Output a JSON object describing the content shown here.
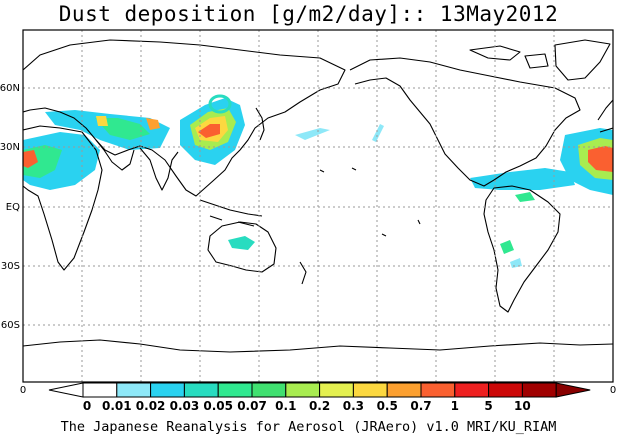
{
  "title": "Dust deposition [g/m2/day]:: 13May2012",
  "map": {
    "lat_labels": [
      "60N",
      "30N",
      "EQ",
      "30S",
      "60S"
    ],
    "lon_left_label": "0",
    "lon_right_label": "0",
    "grid": true,
    "projection": "Pacific-centred global (0E to 360E)"
  },
  "colorbar": {
    "labels": [
      "0",
      "0.01",
      "0.02",
      "0.03",
      "0.05",
      "0.07",
      "0.1",
      "0.2",
      "0.3",
      "0.5",
      "0.7",
      "1",
      "5",
      "10"
    ],
    "colors": [
      "#ffffff",
      "#8ee8f8",
      "#2ad2f0",
      "#28dcc0",
      "#30e890",
      "#40e070",
      "#a8ec50",
      "#e4f050",
      "#fcd840",
      "#fca030",
      "#fa6030",
      "#ee2020",
      "#cc0808",
      "#a00000"
    ],
    "under_color": "#ffffff",
    "over_color": "#880000"
  },
  "dust_regions": [
    {
      "region": "Taklamakan / Gobi",
      "level": "up to 0.5"
    },
    {
      "region": "Saharan outflow (W. Africa / Atlantic)",
      "level": "up to 1"
    },
    {
      "region": "Sahara / Arabia",
      "level": "up to 0.5"
    },
    {
      "region": "N. Atlantic / Caribbean",
      "level": "0.01-0.05"
    },
    {
      "region": "Central Australia",
      "level": "0.01-0.1"
    },
    {
      "region": "South America",
      "level": "0.01-0.07"
    }
  ],
  "credit": "The Japanese Reanalysis for Aerosol (JRAero) v1.0 MRI/KU_RIAM"
}
